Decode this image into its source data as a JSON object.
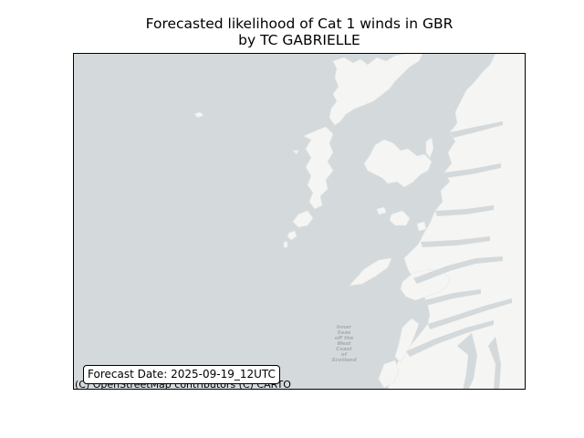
{
  "title": {
    "line1": "Forecasted likelihood of Cat 1 winds in GBR",
    "line2": "by TC GABRIELLE"
  },
  "forecast_label": "Forecast Date: 2025-09-19_12UTC",
  "attribution": "(C) OpenStreetMap contributors (C) CARTO",
  "map": {
    "sea_label": [
      "Inner",
      "Seas",
      "off the",
      "West",
      "Coast",
      "of",
      "Scotland"
    ]
  },
  "colors": {
    "sea": "#d4dadc",
    "land": "#f5f5f3",
    "border": "#000000"
  }
}
